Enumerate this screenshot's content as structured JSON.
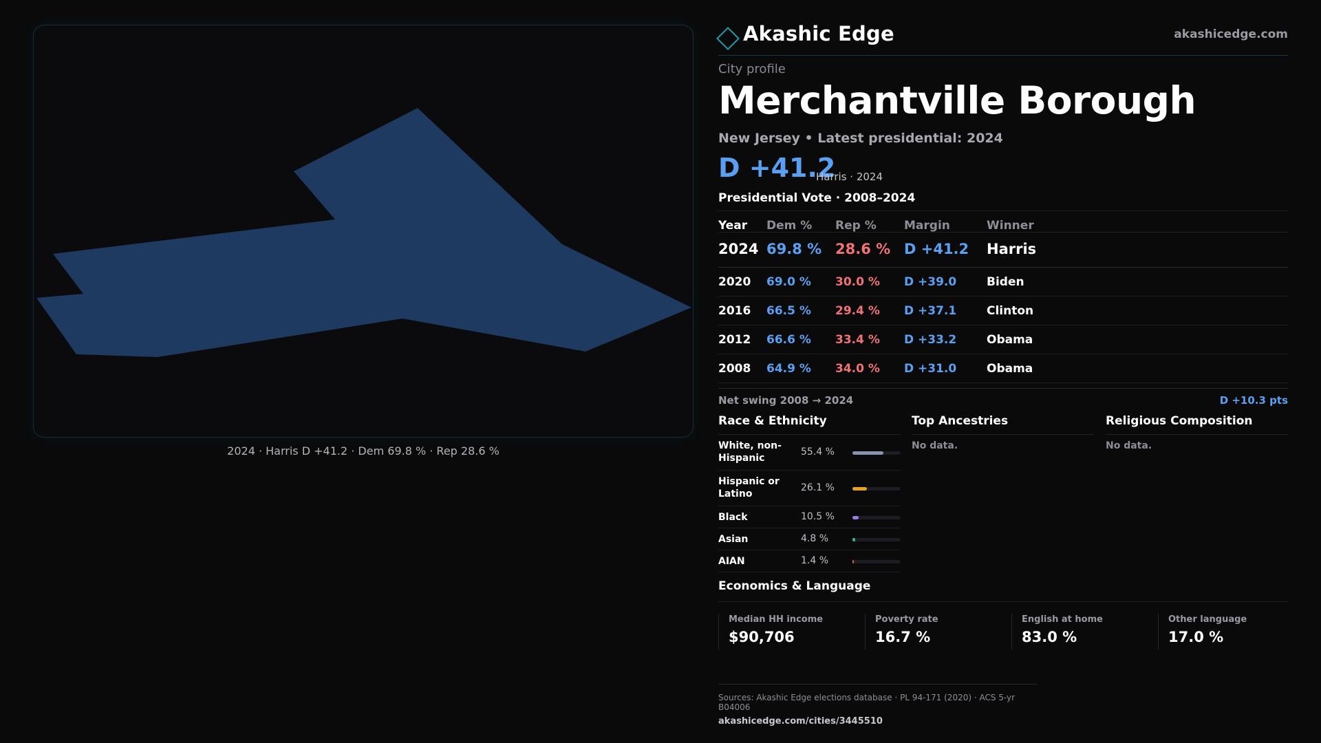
{
  "map": {
    "caption": "2024 · Harris D +41.2 · Dem 69.8 % · Rep 28.6 %",
    "fill_color": "#1f3a60"
  },
  "header": {
    "brand": "Akashic Edge",
    "site": "akashicedge.com",
    "accent_color": "#1e9aa8"
  },
  "profile": {
    "eyebrow": "City profile",
    "title": "Merchantville Borough",
    "subtitle": "New Jersey • Latest presidential: 2024",
    "margin": "D +41.2",
    "margin_note": "Harris · 2024"
  },
  "vote_table": {
    "title": "Presidential Vote · 2008–2024",
    "columns": [
      "Year",
      "Dem %",
      "Rep %",
      "Margin",
      "Winner"
    ],
    "rows": [
      {
        "year": "2024",
        "dem": "69.8 %",
        "rep": "28.6 %",
        "margin": "D +41.2",
        "winner": "Harris"
      },
      {
        "year": "2020",
        "dem": "69.0 %",
        "rep": "30.0 %",
        "margin": "D +39.0",
        "winner": "Biden"
      },
      {
        "year": "2016",
        "dem": "66.5 %",
        "rep": "29.4 %",
        "margin": "D +37.1",
        "winner": "Clinton"
      },
      {
        "year": "2012",
        "dem": "66.6 %",
        "rep": "33.4 %",
        "margin": "D +33.2",
        "winner": "Obama"
      },
      {
        "year": "2008",
        "dem": "64.9 %",
        "rep": "34.0 %",
        "margin": "D +31.0",
        "winner": "Obama"
      }
    ],
    "dem_color": "#5aa0f2",
    "rep_color": "#f07272"
  },
  "swing": {
    "label": "Net swing 2008 → 2024",
    "value": "D +10.3 pts"
  },
  "race": {
    "title": "Race & Ethnicity",
    "rows": [
      {
        "name": "White, non-Hispanic",
        "pct": "55.4 %",
        "share": 0.554,
        "color": "#8a94ac"
      },
      {
        "name": "Hispanic or Latino",
        "pct": "26.1 %",
        "share": 0.261,
        "color": "#e6a21e"
      },
      {
        "name": "Black",
        "pct": "10.5 %",
        "share": 0.105,
        "color": "#9a7ae8"
      },
      {
        "name": "Asian",
        "pct": "4.8 %",
        "share": 0.048,
        "color": "#2bbf8a"
      },
      {
        "name": "AIAN",
        "pct": "1.4 %",
        "share": 0.014,
        "color": "#d6663a"
      }
    ]
  },
  "ancestries": {
    "title": "Top Ancestries",
    "empty": "No data."
  },
  "religion": {
    "title": "Religious Composition",
    "empty": "No data."
  },
  "economics": {
    "title": "Economics & Language",
    "stats": [
      {
        "label": "Median HH income",
        "value": "$90,706"
      },
      {
        "label": "Poverty rate",
        "value": "16.7 %"
      },
      {
        "label": "English at home",
        "value": "83.0 %"
      },
      {
        "label": "Other language",
        "value": "17.0 %"
      }
    ]
  },
  "footer": {
    "sources": "Sources: Akashic Edge elections database · PL 94-171 (2020) · ACS 5-yr B04006",
    "url": "akashicedge.com/cities/3445510"
  }
}
